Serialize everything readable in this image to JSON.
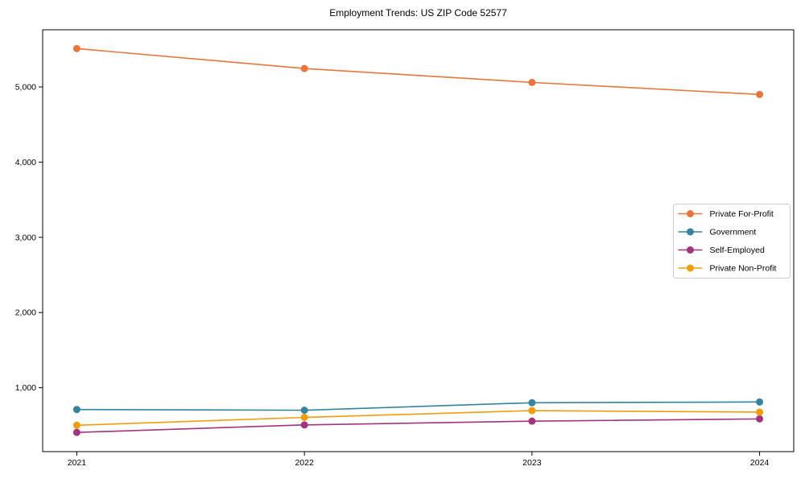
{
  "chart_data": {
    "type": "line",
    "title": "Employment Trends: US ZIP Code 52577",
    "x": [
      2021,
      2022,
      2023,
      2024
    ],
    "xtick_labels": [
      "2021",
      "2022",
      "2023",
      "2024"
    ],
    "series": [
      {
        "name": "Private For-Profit",
        "color": "#e8763c",
        "values": [
          5510,
          5245,
          5060,
          4900
        ]
      },
      {
        "name": "Government",
        "color": "#35839f",
        "values": [
          710,
          700,
          800,
          810
        ]
      },
      {
        "name": "Self-Employed",
        "color": "#a2337e",
        "values": [
          405,
          505,
          555,
          585
        ]
      },
      {
        "name": "Private Non-Profit",
        "color": "#f09d0c",
        "values": [
          500,
          605,
          695,
          675
        ]
      }
    ],
    "xlabel": "",
    "ylabel": "",
    "xlim": [
      2020.85,
      2024.15
    ],
    "ylim": [
      150,
      5760
    ],
    "yticks": [
      1000,
      2000,
      3000,
      4000,
      5000
    ],
    "ytick_labels": [
      "1,000",
      "2,000",
      "3,000",
      "4,000",
      "5,000"
    ],
    "grid": "off",
    "legend_position": "center-right",
    "marker": "circle",
    "axis_color": "#000000",
    "legend_border_color": "#cccccc",
    "background_color": "#ffffff"
  }
}
